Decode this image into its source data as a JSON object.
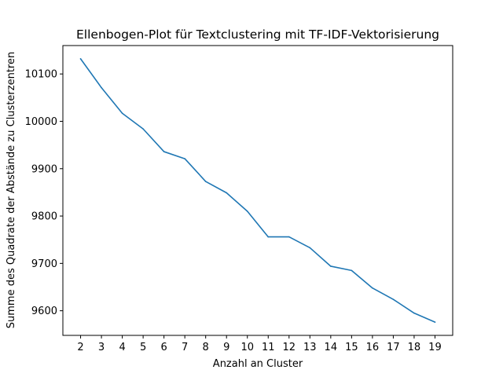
{
  "chart_data": {
    "type": "line",
    "title": "Ellenbogen-Plot für Textclustering mit TF-IDF-Vektorisierung",
    "xlabel": "Anzahl an Cluster",
    "ylabel": "Summe des Quadrate der Abstände zu Clusterzentren",
    "x": [
      2,
      3,
      4,
      5,
      6,
      7,
      8,
      9,
      10,
      11,
      12,
      13,
      14,
      15,
      16,
      17,
      18,
      19
    ],
    "series": [
      {
        "values": [
          10132,
          10071,
          10017,
          9984,
          9936,
          9921,
          9873,
          9849,
          9810,
          9756,
          9756,
          9733,
          9694,
          9685,
          9648,
          9624,
          9595,
          9576
        ],
        "color": "#1f77b4"
      }
    ],
    "xlim": [
      1.15,
      19.85
    ],
    "ylim": [
      9548,
      10160
    ],
    "xticks": [
      "2",
      "3",
      "4",
      "5",
      "6",
      "7",
      "8",
      "9",
      "10",
      "11",
      "12",
      "13",
      "14",
      "15",
      "16",
      "17",
      "18",
      "19"
    ],
    "yticks": [
      "9600",
      "9700",
      "9800",
      "9900",
      "10000",
      "10100"
    ],
    "grid": false,
    "legend": "none"
  }
}
